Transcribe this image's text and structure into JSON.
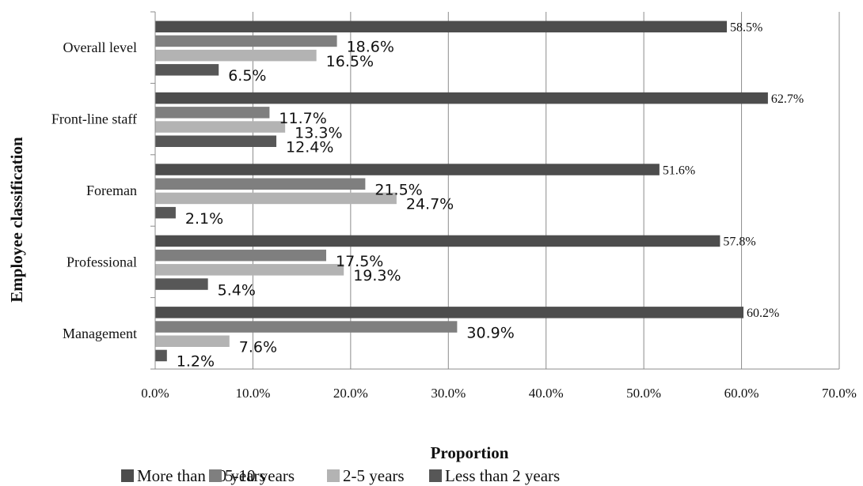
{
  "chart_data": {
    "type": "bar",
    "orientation": "horizontal",
    "categories": [
      "Overall level",
      "Front-line staff",
      "Foreman",
      "Professional",
      "Management"
    ],
    "series": [
      {
        "name": "More than 10 years",
        "values": [
          58.5,
          62.7,
          51.6,
          57.8,
          60.2
        ],
        "labels": [
          "58.5%",
          "62.7%",
          "51.6%",
          "57.8%",
          "60.2%"
        ],
        "color": "#4d4d4d"
      },
      {
        "name": "5-10 years",
        "values": [
          18.6,
          11.7,
          21.5,
          17.5,
          30.9
        ],
        "labels": [
          "18.6%",
          "11.7%",
          "21.5%",
          "17.5%",
          "30.9%"
        ],
        "color": "#7f7f7f"
      },
      {
        "name": "2-5 years",
        "values": [
          16.5,
          13.3,
          24.7,
          19.3,
          7.6
        ],
        "labels": [
          "16.5%",
          "13.3%",
          "24.7%",
          "19.3%",
          "7.6%"
        ],
        "color": "#b3b3b3"
      },
      {
        "name": "Less than 2 years",
        "values": [
          6.5,
          12.4,
          2.1,
          5.4,
          1.2
        ],
        "labels": [
          "6.5%",
          "12.4%",
          "2.1%",
          "5.4%",
          "1.2%"
        ],
        "color": "#575757"
      }
    ],
    "xlabel": "Proportion",
    "ylabel": "Employee classification",
    "xlim": [
      0,
      70
    ],
    "x_ticks": [
      "0.0%",
      "10.0%",
      "20.0%",
      "30.0%",
      "40.0%",
      "50.0%",
      "60.0%",
      "70.0%"
    ],
    "grid": "vertical",
    "legend_position": "bottom"
  }
}
